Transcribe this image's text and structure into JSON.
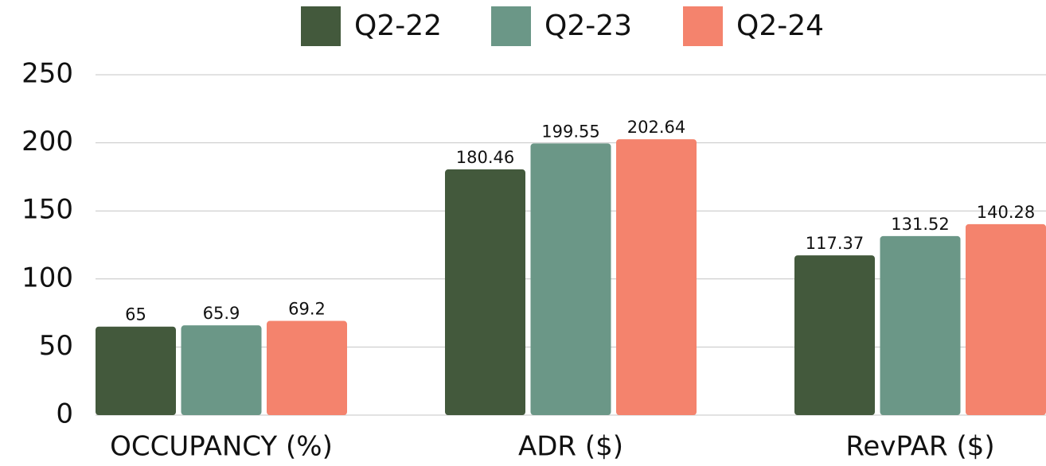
{
  "chart_data": {
    "type": "bar",
    "categories": [
      "OCCUPANCY (%)",
      "ADR ($)",
      "RevPAR ($)"
    ],
    "series": [
      {
        "name": "Q2-22",
        "color": "#43593c",
        "values": [
          65,
          180.46,
          117.37
        ]
      },
      {
        "name": "Q2-23",
        "color": "#6b9787",
        "values": [
          65.9,
          199.55,
          131.52
        ]
      },
      {
        "name": "Q2-24",
        "color": "#f4836d",
        "values": [
          69.2,
          202.64,
          140.28
        ]
      }
    ],
    "ylim": [
      0,
      250
    ],
    "yticks": [
      0,
      50,
      100,
      150,
      200,
      250
    ],
    "grid": true,
    "legend": "top"
  }
}
